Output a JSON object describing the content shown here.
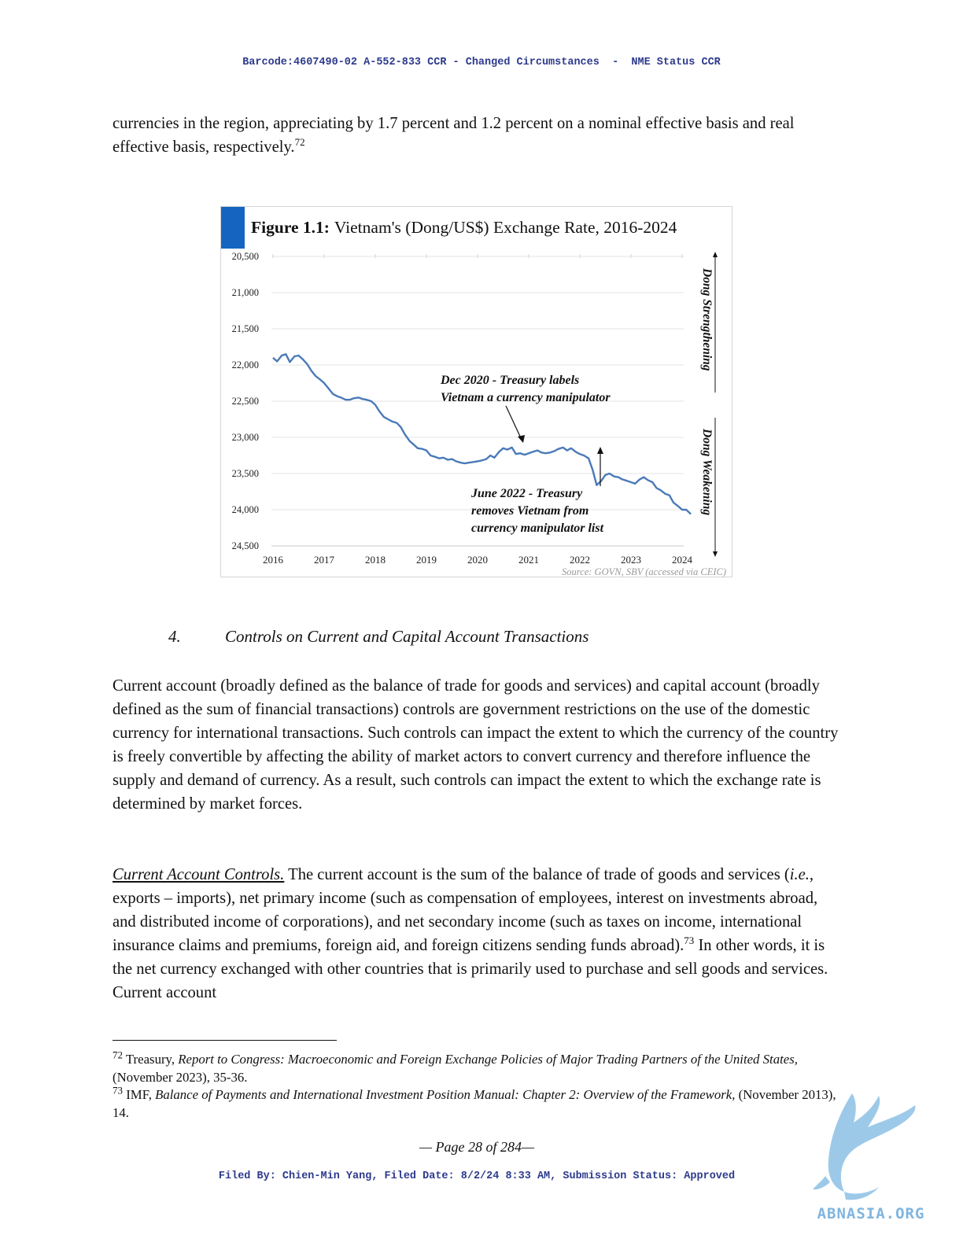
{
  "header": {
    "text": "Barcode:4607490-02 A-552-833 CCR - Changed Circumstances  -  NME Status CCR"
  },
  "intro": {
    "text": "currencies in the region, appreciating by 1.7 percent and 1.2 percent on a nominal effective basis and real effective basis, respectively.",
    "footnote_ref": "72"
  },
  "figure": {
    "label": "Figure 1.1:",
    "title": "Vietnam's (Dong/US$) Exchange Rate, 2016-2024",
    "source": "Source: GOVN, SBV (accessed via CEIC)",
    "side_up": "Dong Strengthening",
    "side_down": "Dong Weakening",
    "annotation_1": [
      "Dec 2020 - Treasury labels",
      "Vietnam a currency manipulator"
    ],
    "annotation_2": [
      "June 2022 - Treasury",
      "removes Vietnam from",
      "currency manipulator list"
    ],
    "accent_color": "#1565c0",
    "line_color": "#4a7ab8"
  },
  "chart_data": {
    "type": "line",
    "title": "Vietnam's (Dong/US$) Exchange Rate, 2016-2024",
    "xlabel": "",
    "ylabel": "",
    "x_ticks": [
      "2016",
      "2017",
      "2018",
      "2019",
      "2020",
      "2021",
      "2022",
      "2023",
      "2024"
    ],
    "y_ticks": [
      "20,500",
      "21,000",
      "21,500",
      "22,000",
      "22,500",
      "23,000",
      "23,500",
      "24,000",
      "24,500"
    ],
    "ylim": [
      20500,
      24500
    ],
    "y_inverted": true,
    "xlim": [
      2016,
      2024.3
    ],
    "series": [
      {
        "name": "Dong/US$",
        "x": [
          2016.0,
          2016.08,
          2016.17,
          2016.25,
          2016.33,
          2016.42,
          2016.5,
          2016.58,
          2016.67,
          2016.75,
          2016.83,
          2016.92,
          2017.0,
          2017.08,
          2017.17,
          2017.25,
          2017.33,
          2017.42,
          2017.5,
          2017.58,
          2017.67,
          2017.75,
          2017.83,
          2017.92,
          2018.0,
          2018.08,
          2018.17,
          2018.25,
          2018.33,
          2018.42,
          2018.5,
          2018.58,
          2018.67,
          2018.75,
          2018.83,
          2018.92,
          2019.0,
          2019.08,
          2019.17,
          2019.25,
          2019.33,
          2019.42,
          2019.5,
          2019.58,
          2019.67,
          2019.75,
          2019.83,
          2019.92,
          2020.0,
          2020.08,
          2020.17,
          2020.25,
          2020.33,
          2020.42,
          2020.5,
          2020.58,
          2020.67,
          2020.75,
          2020.83,
          2020.92,
          2021.0,
          2021.08,
          2021.17,
          2021.25,
          2021.33,
          2021.42,
          2021.5,
          2021.58,
          2021.67,
          2021.75,
          2021.83,
          2021.92,
          2022.0,
          2022.08,
          2022.17,
          2022.25,
          2022.33,
          2022.42,
          2022.5,
          2022.58,
          2022.67,
          2022.75,
          2022.83,
          2022.92,
          2023.0,
          2023.08,
          2023.17,
          2023.25,
          2023.33,
          2023.42,
          2023.5,
          2023.58,
          2023.67,
          2023.75,
          2023.83,
          2023.92,
          2024.0,
          2024.08,
          2024.17
        ],
        "values": [
          21900,
          21950,
          21870,
          21850,
          21960,
          21880,
          21870,
          21920,
          21990,
          22080,
          22150,
          22200,
          22250,
          22320,
          22400,
          22430,
          22450,
          22480,
          22480,
          22460,
          22450,
          22470,
          22480,
          22500,
          22550,
          22640,
          22720,
          22750,
          22780,
          22800,
          22860,
          22960,
          23050,
          23100,
          23150,
          23160,
          23180,
          23250,
          23270,
          23290,
          23280,
          23310,
          23300,
          23330,
          23350,
          23360,
          23350,
          23340,
          23330,
          23320,
          23300,
          23250,
          23280,
          23200,
          23150,
          23170,
          23140,
          23230,
          23220,
          23240,
          23220,
          23200,
          23180,
          23210,
          23220,
          23210,
          23190,
          23160,
          23140,
          23180,
          23150,
          23200,
          23230,
          23250,
          23290,
          23450,
          23660,
          23600,
          23520,
          23500,
          23540,
          23550,
          23580,
          23600,
          23620,
          23640,
          23580,
          23550,
          23590,
          23620,
          23700,
          23730,
          23780,
          23800,
          23900,
          23950,
          24000,
          24000,
          24060
        ]
      }
    ]
  },
  "section": {
    "number": "4.",
    "title": "Controls on Current and Capital Account Transactions"
  },
  "paragraph1": {
    "text": "Current account (broadly defined as the balance of trade for goods and services) and capital account (broadly defined as the sum of financial transactions) controls are government restrictions on the use of the domestic currency for international transactions. Such controls can impact the extent to which the currency of the country is freely convertible by affecting the ability of market actors to convert currency and therefore influence the supply and demand of currency. As a result, such controls can impact the extent to which the exchange rate is determined by market forces."
  },
  "paragraph2": {
    "lead": "Current Account Controls.",
    "part1": " The current account is the sum of the balance of trade of goods and services (",
    "ie": "i.e.",
    "part2": ", exports – imports), net primary income (such as compensation of employees, interest on investments abroad, and distributed income of corporations), and net secondary income (such as taxes on income, international insurance claims and premiums, foreign aid, and foreign citizens sending funds abroad).",
    "footnote_ref": "73",
    "part3": " In other words, it is the net currency exchanged with other countries that is primarily used to purchase and sell goods and services. Current account"
  },
  "footnotes": [
    {
      "num": "72",
      "author": " Treasury, ",
      "title": "Report to Congress: Macroeconomic and Foreign Exchange Policies of Major Trading Partners of the United States,",
      "tail": " (November 2023), 35-36."
    },
    {
      "num": "73",
      "author": " IMF, ",
      "title": "Balance of Payments and International Investment Position Manual: Chapter 2: Overview of the Framework,",
      "tail": " (November 2013), 14."
    }
  ],
  "page_number": "— Page 28 of 284—",
  "footer": {
    "text": "Filed By: Chien-Min Yang, Filed Date: 8/2/24 8:33 AM, Submission Status: Approved"
  },
  "watermark": {
    "text": "ABNASIA.ORG",
    "color": "#7fb5e0"
  }
}
